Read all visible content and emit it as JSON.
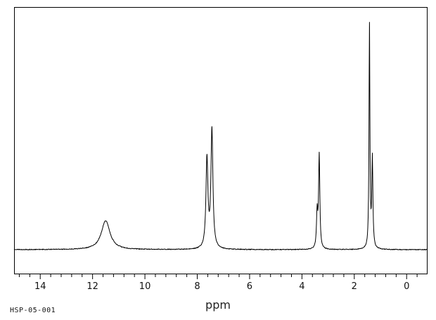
{
  "footer": {
    "id": "HSP-05-001"
  },
  "chart_data": {
    "type": "line",
    "kind": "1H-NMR spectrum trace",
    "xlabel": "ppm",
    "line_color": "#000000",
    "background_color": "#ffffff",
    "grid": false,
    "legend": false,
    "x_axis": {
      "range": [
        15.0,
        -0.8
      ],
      "major_ticks": [
        14,
        12,
        10,
        8,
        6,
        4,
        2,
        0
      ],
      "minor_tick_step": 0.4,
      "direction": "reversed"
    },
    "y_axis": {
      "visible": false
    },
    "peaks": [
      {
        "ppm": 11.5,
        "rel_height": 0.13,
        "hwhm_ppm": 0.2,
        "note": "broad"
      },
      {
        "ppm": 7.63,
        "rel_height": 0.4,
        "hwhm_ppm": 0.045
      },
      {
        "ppm": 7.44,
        "rel_height": 0.53,
        "hwhm_ppm": 0.045
      },
      {
        "ppm": 3.42,
        "rel_height": 0.16,
        "hwhm_ppm": 0.028
      },
      {
        "ppm": 3.34,
        "rel_height": 0.42,
        "hwhm_ppm": 0.028
      },
      {
        "ppm": 1.42,
        "rel_height": 1.0,
        "hwhm_ppm": 0.02
      },
      {
        "ppm": 1.31,
        "rel_height": 0.4,
        "hwhm_ppm": 0.025
      }
    ]
  }
}
